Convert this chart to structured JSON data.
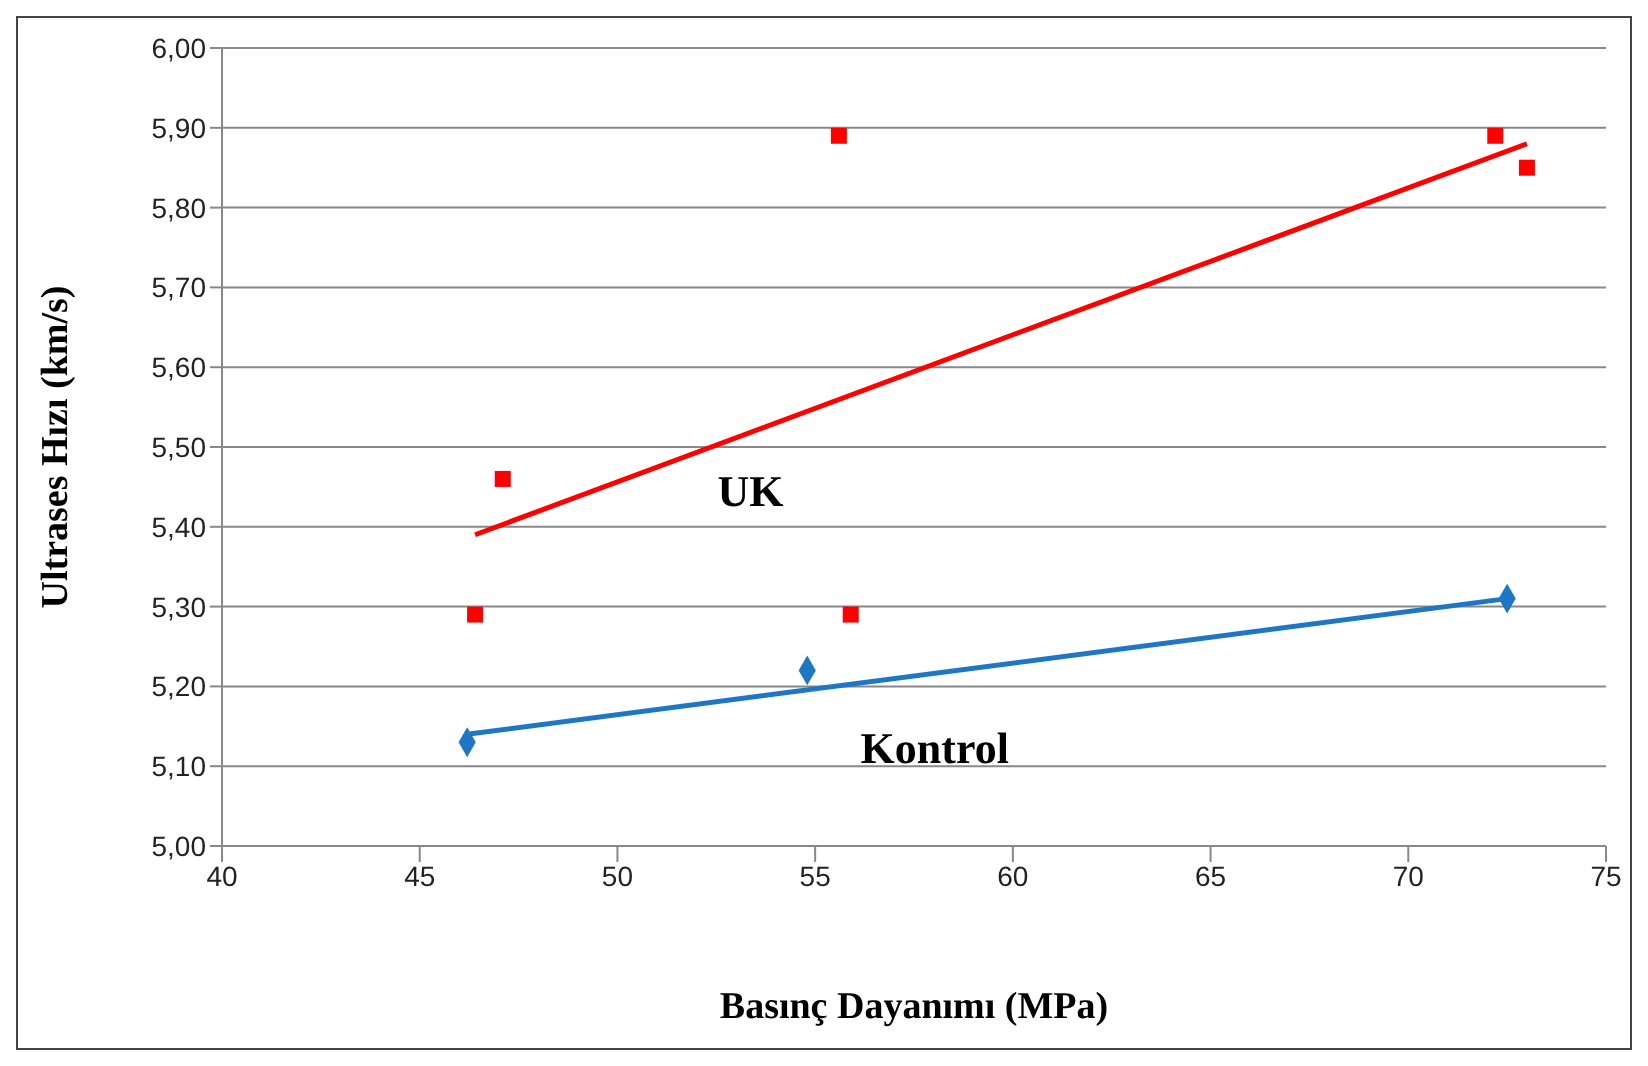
{
  "chart_data": {
    "type": "scatter",
    "xlabel": "Basınç Dayanımı (MPa)",
    "ylabel": "Ultrases Hızı (km/s)",
    "xlim": [
      40,
      75
    ],
    "xticks": [
      40,
      45,
      50,
      55,
      60,
      65,
      70,
      75
    ],
    "ylim": [
      5,
      6
    ],
    "yticks": [
      {
        "value": 5,
        "label": "5,00"
      },
      {
        "value": 5.1,
        "label": "5,10"
      },
      {
        "value": 5.2,
        "label": "5,20"
      },
      {
        "value": 5.3,
        "label": "5,30"
      },
      {
        "value": 5.4,
        "label": "5,40"
      },
      {
        "value": 5.5,
        "label": "5,50"
      },
      {
        "value": 5.6,
        "label": "5,60"
      },
      {
        "value": 5.7,
        "label": "5,70"
      },
      {
        "value": 5.8,
        "label": "5,80"
      },
      {
        "value": 5.9,
        "label": "5,90"
      },
      {
        "value": 6,
        "label": "6,00"
      }
    ],
    "grid": "y",
    "legend": false,
    "series": [
      {
        "name": "UK",
        "marker": "square",
        "color": "#ff0000",
        "x": [
          46.4,
          47.1,
          55.6,
          55.9,
          72.2,
          73.0
        ],
        "values": [
          5.29,
          5.46,
          5.89,
          5.29,
          5.89,
          5.85
        ]
      },
      {
        "type": "line",
        "marker": "none",
        "color": "#ff0000",
        "x": [
          46.4,
          73.0
        ],
        "values": [
          5.39,
          5.88
        ]
      },
      {
        "name": "Kontrol",
        "marker": "diamond",
        "color": "#1f77c4",
        "x": [
          46.2,
          54.8,
          72.5
        ],
        "values": [
          5.13,
          5.22,
          5.31
        ]
      },
      {
        "type": "line",
        "marker": "none",
        "color": "#1f77c4",
        "x": [
          46.2,
          72.5
        ],
        "values": [
          5.14,
          5.31
        ]
      }
    ]
  }
}
